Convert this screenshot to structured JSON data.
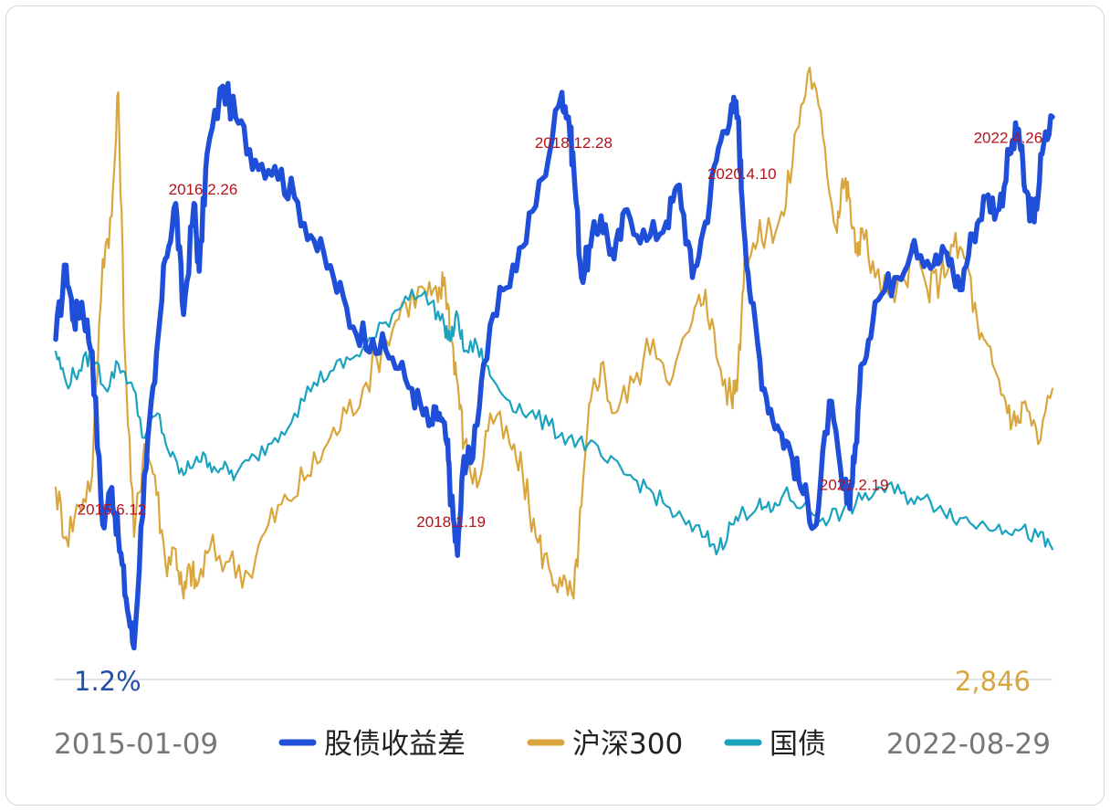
{
  "chart_data": {
    "type": "line",
    "title": "",
    "x_start": "2015-01-09",
    "x_end": "2022-08-29",
    "x_range": [
      2015.02,
      2022.66
    ],
    "y_range": [
      0,
      100
    ],
    "y_note": "normalized scale; each series drawn on its own axis",
    "left_value_label": "1.2%",
    "right_value_label": "2,846",
    "series": [
      {
        "name": "股债收益差",
        "color": "#1f4fd8",
        "x": [
          2015.02,
          2015.1,
          2015.16,
          2015.22,
          2015.3,
          2015.38,
          2015.45,
          2015.5,
          2015.56,
          2015.62,
          2015.7,
          2015.78,
          2015.86,
          2015.94,
          2016.0,
          2016.08,
          2016.12,
          2016.18,
          2016.3,
          2016.42,
          2016.55,
          2016.7,
          2016.85,
          2017.0,
          2017.15,
          2017.3,
          2017.45,
          2017.6,
          2017.75,
          2017.88,
          2017.96,
          2018.02,
          2018.05,
          2018.1,
          2018.15,
          2018.2,
          2018.3,
          2018.45,
          2018.6,
          2018.75,
          2018.9,
          2018.95,
          2018.99,
          2019.05,
          2019.12,
          2019.2,
          2019.3,
          2019.4,
          2019.55,
          2019.7,
          2019.8,
          2019.9,
          2020.0,
          2020.1,
          2020.2,
          2020.25,
          2020.28,
          2020.35,
          2020.45,
          2020.55,
          2020.65,
          2020.75,
          2020.85,
          2020.95,
          2021.05,
          2021.1,
          2021.14,
          2021.2,
          2021.3,
          2021.45,
          2021.6,
          2021.75,
          2021.85,
          2021.95,
          2022.05,
          2022.15,
          2022.25,
          2022.33,
          2022.4,
          2022.45,
          2022.52,
          2022.58,
          2022.66
        ],
        "y": [
          52,
          64,
          55,
          58,
          50,
          22,
          28,
          20,
          10,
          2,
          30,
          45,
          65,
          74,
          56,
          74,
          63,
          82,
          93,
          87,
          81,
          80,
          75,
          68,
          62,
          54,
          52,
          49,
          44,
          38,
          40,
          35,
          26,
          17,
          33,
          32,
          48,
          60,
          67,
          78,
          92,
          88,
          80,
          62,
          67,
          72,
          65,
          73,
          68,
          71,
          77,
          62,
          71,
          83,
          90,
          88,
          75,
          58,
          44,
          38,
          34,
          27,
          22,
          42,
          28,
          26,
          32,
          48,
          58,
          62,
          68,
          64,
          66,
          60,
          69,
          75,
          73,
          82,
          86,
          76,
          71,
          82,
          88
        ]
      },
      {
        "name": "沪深300",
        "color": "#d9a63d",
        "x": [
          2015.02,
          2015.1,
          2015.2,
          2015.3,
          2015.38,
          2015.45,
          2015.5,
          2015.55,
          2015.62,
          2015.7,
          2015.78,
          2015.86,
          2015.94,
          2016.0,
          2016.05,
          2016.1,
          2016.2,
          2016.35,
          2016.5,
          2016.65,
          2016.8,
          2016.95,
          2017.1,
          2017.25,
          2017.4,
          2017.55,
          2017.7,
          2017.85,
          2017.95,
          2018.0,
          2018.05,
          2018.1,
          2018.15,
          2018.25,
          2018.35,
          2018.5,
          2018.6,
          2018.7,
          2018.8,
          2018.9,
          2018.99,
          2019.05,
          2019.12,
          2019.2,
          2019.3,
          2019.45,
          2019.6,
          2019.75,
          2019.9,
          2020.0,
          2020.1,
          2020.2,
          2020.25,
          2020.3,
          2020.4,
          2020.5,
          2020.6,
          2020.7,
          2020.8,
          2020.9,
          2021.0,
          2021.05,
          2021.1,
          2021.15,
          2021.2,
          2021.3,
          2021.45,
          2021.6,
          2021.7,
          2021.8,
          2021.9,
          2022.0,
          2022.1,
          2022.2,
          2022.3,
          2022.38,
          2022.45,
          2022.55,
          2022.66
        ],
        "y": [
          28,
          20,
          25,
          30,
          65,
          72,
          92,
          50,
          20,
          35,
          30,
          16,
          18,
          10,
          15,
          12,
          18,
          16,
          14,
          22,
          26,
          30,
          35,
          40,
          45,
          52,
          58,
          60,
          58,
          62,
          53,
          45,
          35,
          28,
          40,
          35,
          30,
          20,
          15,
          12,
          10,
          25,
          42,
          48,
          40,
          45,
          52,
          46,
          55,
          60,
          48,
          42,
          47,
          65,
          68,
          70,
          72,
          86,
          96,
          85,
          70,
          78,
          75,
          66,
          70,
          62,
          58,
          66,
          60,
          62,
          67,
          65,
          52,
          48,
          42,
          38,
          42,
          35,
          44
        ]
      },
      {
        "name": "国债",
        "color": "#1aa3bf",
        "x": [
          2015.02,
          2015.1,
          2015.2,
          2015.3,
          2015.4,
          2015.5,
          2015.6,
          2015.7,
          2015.8,
          2015.9,
          2016.0,
          2016.1,
          2016.2,
          2016.3,
          2016.4,
          2016.55,
          2016.7,
          2016.85,
          2017.0,
          2017.15,
          2017.3,
          2017.45,
          2017.6,
          2017.75,
          2017.9,
          2018.0,
          2018.05,
          2018.1,
          2018.15,
          2018.25,
          2018.35,
          2018.5,
          2018.65,
          2018.8,
          2018.95,
          2019.1,
          2019.25,
          2019.4,
          2019.55,
          2019.7,
          2019.85,
          2020.0,
          2020.1,
          2020.2,
          2020.3,
          2020.4,
          2020.5,
          2020.6,
          2020.75,
          2020.9,
          2021.05,
          2021.2,
          2021.35,
          2021.5,
          2021.65,
          2021.8,
          2021.95,
          2022.1,
          2022.25,
          2022.4,
          2022.55,
          2022.66
        ],
        "y": [
          50,
          45,
          47,
          50,
          44,
          48,
          45,
          36,
          40,
          33,
          30,
          33,
          32,
          31,
          30,
          33,
          36,
          40,
          45,
          47,
          49,
          52,
          56,
          60,
          58,
          54,
          52,
          56,
          50,
          51,
          46,
          42,
          40,
          38,
          36,
          35,
          32,
          30,
          28,
          25,
          22,
          20,
          18,
          22,
          24,
          25,
          24,
          27,
          25,
          23,
          24,
          26,
          28,
          27,
          26,
          25,
          23,
          22,
          22,
          21,
          20,
          18
        ]
      }
    ],
    "annotations": [
      {
        "text": "2015.6.12",
        "x": 2015.45
      },
      {
        "text": "2016.2.26",
        "x": 2016.15
      },
      {
        "text": "2018.1.19",
        "x": 2018.05
      },
      {
        "text": "2018.12.28",
        "x": 2018.99
      },
      {
        "text": "2020.4.10",
        "x": 2020.28
      },
      {
        "text": "2021.2.19",
        "x": 2021.14
      },
      {
        "text": "2022.4.26",
        "x": 2022.32
      }
    ],
    "legend": [
      {
        "name": "股债收益差",
        "color": "#1f4fd8"
      },
      {
        "name": "沪深300",
        "color": "#d9a63d"
      },
      {
        "name": "国债",
        "color": "#1aa3bf"
      }
    ]
  }
}
